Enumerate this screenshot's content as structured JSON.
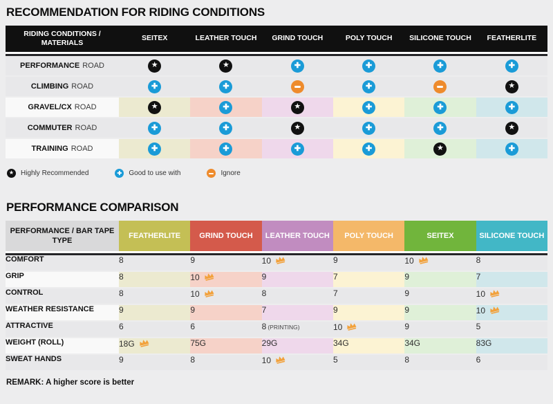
{
  "colors": {
    "page_bg": "#ededee",
    "header1_bg": "#101010",
    "row_gray": "#e8e8ea",
    "row_label_tinted_bg": "#f9f9f9",
    "column_tints": [
      "#ecead0",
      "#f6d2c8",
      "#efd8eb",
      "#fcf3d3",
      "#dff0d8",
      "#d0e7eb"
    ],
    "icon_star_bg": "#111111",
    "icon_plus_bg": "#1a9bd7",
    "icon_minus_bg": "#ee8b2c",
    "crown": "#f2a13b",
    "header2_label_bg": "#d9d9da"
  },
  "riding": {
    "title": "RECOMMENDATION FOR RIDING CONDITIONS",
    "header": {
      "label": "RIDING CONDITIONS / MATERIALS",
      "columns": [
        "SEITEX",
        "LEATHER TOUCH",
        "GRIND TOUCH",
        "POLY TOUCH",
        "SILICONE TOUCH",
        "FEATHERLITE"
      ]
    },
    "rows": [
      {
        "label_bold": "PERFORMANCE",
        "label_rest": "ROAD",
        "tinted": false,
        "cells": [
          "star",
          "star",
          "plus",
          "plus",
          "plus",
          "plus"
        ]
      },
      {
        "label_bold": "CLIMBING",
        "label_rest": "ROAD",
        "tinted": false,
        "cells": [
          "plus",
          "plus",
          "minus",
          "plus",
          "minus",
          "star"
        ]
      },
      {
        "label_bold": "GRAVEL/CX",
        "label_rest": "ROAD",
        "tinted": true,
        "cells": [
          "star",
          "plus",
          "star",
          "plus",
          "plus",
          "plus"
        ]
      },
      {
        "label_bold": "COMMUTER",
        "label_rest": "ROAD",
        "tinted": false,
        "cells": [
          "plus",
          "plus",
          "star",
          "plus",
          "plus",
          "star"
        ]
      },
      {
        "label_bold": "TRAINING",
        "label_rest": "ROAD",
        "tinted": true,
        "cells": [
          "plus",
          "plus",
          "plus",
          "plus",
          "star",
          "plus"
        ]
      }
    ],
    "legend": [
      {
        "icon": "star",
        "label": "Highly Recommended"
      },
      {
        "icon": "plus",
        "label": "Good to use with"
      },
      {
        "icon": "minus",
        "label": "Ignore"
      }
    ]
  },
  "performance": {
    "title": "PERFORMANCE COMPARISON",
    "header": {
      "label": "PERFORMANCE / BAR TAPE TYPE",
      "columns": [
        {
          "name": "FEATHERLITE",
          "color": "#c4bf55"
        },
        {
          "name": "GRIND TOUCH",
          "color": "#d45a4b"
        },
        {
          "name": "LEATHER TOUCH",
          "color": "#c18cc0"
        },
        {
          "name": "POLY TOUCH",
          "color": "#f4b869"
        },
        {
          "name": "SEITEX",
          "color": "#71b53c"
        },
        {
          "name": "SILICONE TOUCH",
          "color": "#42b7c6"
        }
      ]
    },
    "rows": [
      {
        "label": "COMFORT",
        "tinted": false,
        "cells": [
          {
            "v": "8"
          },
          {
            "v": "9"
          },
          {
            "v": "10",
            "crown": true
          },
          {
            "v": "9"
          },
          {
            "v": "10",
            "crown": true
          },
          {
            "v": "8"
          }
        ]
      },
      {
        "label": "GRIP",
        "tinted": true,
        "cells": [
          {
            "v": "8"
          },
          {
            "v": "10",
            "crown": true
          },
          {
            "v": "9"
          },
          {
            "v": "7"
          },
          {
            "v": "9"
          },
          {
            "v": "7"
          }
        ]
      },
      {
        "label": "CONTROL",
        "tinted": false,
        "cells": [
          {
            "v": "8"
          },
          {
            "v": "10",
            "crown": true
          },
          {
            "v": "8"
          },
          {
            "v": "7"
          },
          {
            "v": "9"
          },
          {
            "v": "10",
            "crown": true
          }
        ]
      },
      {
        "label": "WEATHER RESISTANCE",
        "tinted": true,
        "cells": [
          {
            "v": "9"
          },
          {
            "v": "9"
          },
          {
            "v": "7"
          },
          {
            "v": "9"
          },
          {
            "v": "9"
          },
          {
            "v": "10",
            "crown": true
          }
        ]
      },
      {
        "label": "ATTRACTIVE",
        "tinted": false,
        "cells": [
          {
            "v": "6"
          },
          {
            "v": "6"
          },
          {
            "v": "8",
            "note": "(PRINTING)"
          },
          {
            "v": "10",
            "crown": true
          },
          {
            "v": "9"
          },
          {
            "v": "5"
          }
        ]
      },
      {
        "label": "WEIGHT (ROLL)",
        "tinted": true,
        "cells": [
          {
            "v": "18G",
            "crown": true
          },
          {
            "v": "75G"
          },
          {
            "v": "29G"
          },
          {
            "v": "34G"
          },
          {
            "v": "34G"
          },
          {
            "v": "83G"
          }
        ]
      },
      {
        "label": "SWEAT HANDS",
        "tinted": false,
        "cells": [
          {
            "v": "9"
          },
          {
            "v": "8"
          },
          {
            "v": "10",
            "crown": true
          },
          {
            "v": "5"
          },
          {
            "v": "8"
          },
          {
            "v": "6"
          }
        ]
      }
    ],
    "remark": "REMARK: A higher score is better"
  }
}
